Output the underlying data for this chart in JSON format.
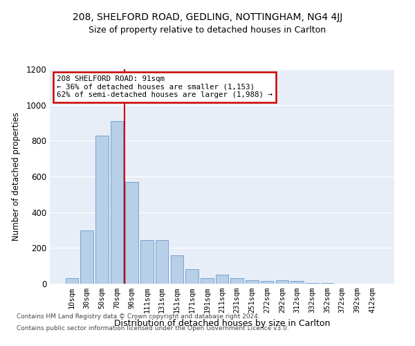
{
  "title1": "208, SHELFORD ROAD, GEDLING, NOTTINGHAM, NG4 4JJ",
  "title2": "Size of property relative to detached houses in Carlton",
  "xlabel": "Distribution of detached houses by size in Carlton",
  "ylabel": "Number of detached properties",
  "footer1": "Contains HM Land Registry data © Crown copyright and database right 2024.",
  "footer2": "Contains public sector information licensed under the Open Government Licence v3.0.",
  "annotation_line1": "208 SHELFORD ROAD: 91sqm",
  "annotation_line2": "← 36% of detached houses are smaller (1,153)",
  "annotation_line3": "62% of semi-detached houses are larger (1,988) →",
  "bar_categories": [
    "10sqm",
    "30sqm",
    "50sqm",
    "70sqm",
    "90sqm",
    "111sqm",
    "131sqm",
    "151sqm",
    "171sqm",
    "191sqm",
    "211sqm",
    "231sqm",
    "251sqm",
    "272sqm",
    "292sqm",
    "312sqm",
    "332sqm",
    "352sqm",
    "372sqm",
    "392sqm",
    "412sqm"
  ],
  "bar_values": [
    30,
    300,
    830,
    910,
    570,
    245,
    245,
    160,
    80,
    30,
    50,
    30,
    20,
    15,
    20,
    15,
    5,
    5,
    0,
    0,
    0
  ],
  "bar_color": "#b8cfe8",
  "bar_edge_color": "#6699cc",
  "vline_color": "#cc0000",
  "background_color": "#e8eef8",
  "annotation_box_color": "#ffffff",
  "annotation_box_edge": "#cc0000",
  "vline_x_index": 4,
  "ylim": [
    0,
    1200
  ],
  "yticks": [
    0,
    200,
    400,
    600,
    800,
    1000,
    1200
  ]
}
